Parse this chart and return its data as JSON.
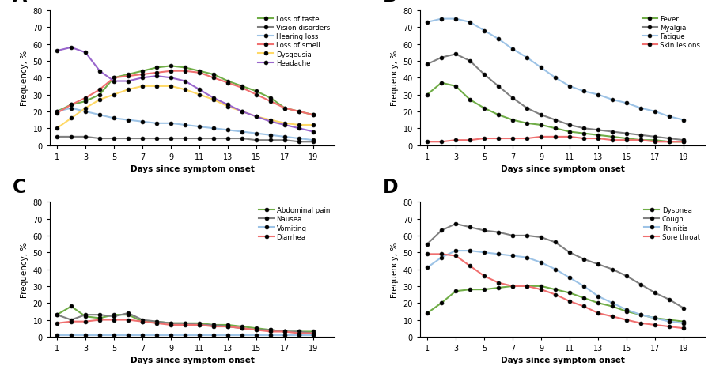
{
  "days": [
    1,
    2,
    3,
    4,
    5,
    6,
    7,
    8,
    9,
    10,
    11,
    12,
    13,
    14,
    15,
    16,
    17,
    18,
    19
  ],
  "panel_A": {
    "title": "A",
    "series": [
      {
        "label": "Loss of taste",
        "color": "#70ad47",
        "values": [
          20,
          24,
          26,
          30,
          40,
          42,
          44,
          46,
          47,
          46,
          44,
          42,
          38,
          35,
          32,
          28,
          22,
          20,
          18
        ]
      },
      {
        "label": "Vision disorders",
        "color": "#808080",
        "values": [
          5,
          5,
          5,
          4,
          4,
          4,
          4,
          4,
          4,
          4,
          4,
          4,
          4,
          4,
          3,
          3,
          3,
          2,
          2
        ]
      },
      {
        "label": "Hearing loss",
        "color": "#9dc3e6",
        "values": [
          20,
          22,
          20,
          18,
          16,
          15,
          14,
          13,
          13,
          12,
          11,
          10,
          9,
          8,
          7,
          6,
          5,
          4,
          3
        ]
      },
      {
        "label": "Loss of smell",
        "color": "#f07070",
        "values": [
          19,
          24,
          28,
          33,
          40,
          41,
          42,
          43,
          44,
          44,
          43,
          40,
          37,
          34,
          30,
          26,
          22,
          20,
          18
        ]
      },
      {
        "label": "Dysgeusia",
        "color": "#ffd966",
        "values": [
          10,
          16,
          22,
          27,
          30,
          33,
          35,
          35,
          35,
          33,
          30,
          27,
          23,
          20,
          17,
          15,
          13,
          12,
          12
        ]
      },
      {
        "label": "Headache",
        "color": "#9966cc",
        "values": [
          56,
          58,
          55,
          44,
          38,
          38,
          40,
          41,
          40,
          38,
          33,
          28,
          24,
          20,
          17,
          14,
          12,
          10,
          8
        ]
      }
    ]
  },
  "panel_B": {
    "title": "B",
    "series": [
      {
        "label": "Fever",
        "color": "#70ad47",
        "values": [
          30,
          37,
          35,
          27,
          22,
          18,
          15,
          13,
          12,
          10,
          8,
          7,
          6,
          5,
          4,
          3,
          3,
          2,
          2
        ]
      },
      {
        "label": "Myalgia",
        "color": "#808080",
        "values": [
          48,
          52,
          54,
          50,
          42,
          35,
          28,
          22,
          18,
          15,
          12,
          10,
          9,
          8,
          7,
          6,
          5,
          4,
          3
        ]
      },
      {
        "label": "Fatigue",
        "color": "#9dc3e6",
        "values": [
          73,
          75,
          75,
          73,
          68,
          63,
          57,
          52,
          46,
          40,
          35,
          32,
          30,
          27,
          25,
          22,
          20,
          17,
          15
        ]
      },
      {
        "label": "Skin lesions",
        "color": "#f07070",
        "values": [
          2,
          2,
          3,
          3,
          4,
          4,
          4,
          4,
          5,
          5,
          5,
          4,
          4,
          3,
          3,
          3,
          2,
          2,
          2
        ]
      }
    ]
  },
  "panel_C": {
    "title": "C",
    "series": [
      {
        "label": "Abdominal pain",
        "color": "#70ad47",
        "values": [
          13,
          18,
          12,
          11,
          13,
          13,
          9,
          9,
          8,
          8,
          8,
          7,
          7,
          6,
          5,
          4,
          3,
          3,
          3
        ]
      },
      {
        "label": "Nausea",
        "color": "#808080",
        "values": [
          13,
          10,
          13,
          13,
          12,
          14,
          10,
          9,
          8,
          8,
          7,
          7,
          6,
          5,
          4,
          4,
          3,
          3,
          2
        ]
      },
      {
        "label": "Vomiting",
        "color": "#9dc3e6",
        "values": [
          1,
          1,
          1,
          1,
          1,
          1,
          1,
          1,
          1,
          1,
          1,
          1,
          1,
          1,
          1,
          1,
          1,
          1,
          1
        ]
      },
      {
        "label": "Diarrhea",
        "color": "#f07070",
        "values": [
          8,
          9,
          9,
          10,
          10,
          10,
          9,
          8,
          7,
          7,
          7,
          6,
          6,
          5,
          4,
          3,
          3,
          2,
          2
        ]
      }
    ]
  },
  "panel_D": {
    "title": "D",
    "series": [
      {
        "label": "Dyspnea",
        "color": "#70ad47",
        "values": [
          14,
          20,
          27,
          28,
          28,
          29,
          30,
          30,
          30,
          28,
          26,
          23,
          20,
          18,
          15,
          13,
          11,
          10,
          9
        ]
      },
      {
        "label": "Cough",
        "color": "#808080",
        "values": [
          55,
          63,
          67,
          65,
          63,
          62,
          60,
          60,
          59,
          56,
          50,
          46,
          43,
          40,
          36,
          31,
          26,
          22,
          17
        ]
      },
      {
        "label": "Rhinitis",
        "color": "#9dc3e6",
        "values": [
          41,
          47,
          51,
          51,
          50,
          49,
          48,
          47,
          44,
          40,
          35,
          30,
          24,
          20,
          16,
          13,
          11,
          9,
          8
        ]
      },
      {
        "label": "Sore throat",
        "color": "#f07070",
        "values": [
          49,
          49,
          48,
          42,
          36,
          32,
          30,
          30,
          28,
          25,
          21,
          18,
          14,
          12,
          10,
          8,
          7,
          6,
          5
        ]
      }
    ]
  },
  "xlabel": "Days since symptom onset",
  "ylabel": "Frequency, %",
  "xticks": [
    1,
    3,
    5,
    7,
    9,
    11,
    13,
    15,
    17,
    19
  ],
  "ylim": [
    0,
    80
  ],
  "yticks": [
    0,
    10,
    20,
    30,
    40,
    50,
    60,
    70,
    80
  ],
  "markersize": 3.5,
  "linewidth": 1.5
}
